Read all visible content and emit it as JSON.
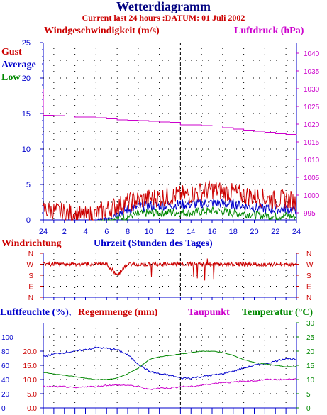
{
  "header": {
    "title": "Wetterdiagramm",
    "subtitle": "Current last 24 hours :DATUM: 01 Juli 2002"
  },
  "colors": {
    "wind": "#cc0000",
    "average": "#0000cc",
    "low": "#008800",
    "pressure": "#cc00cc",
    "humidity": "#0000cc",
    "rain": "#cc0000",
    "dewpoint": "#cc00cc",
    "temperature": "#008800",
    "axis": "#0000cc",
    "grid": "#000000"
  },
  "chart_data": [
    {
      "type": "line",
      "panel": "wind_pressure",
      "left_title": "Windgeschwindigkeit (m/s)",
      "right_title": "Luftdruck (hPa)",
      "legend": [
        "Gust",
        "Average",
        "Low"
      ],
      "x_ticks": [
        "24",
        "2",
        "4",
        "6",
        "8",
        "10",
        "12",
        "14",
        "16",
        "18",
        "20",
        "22",
        "24"
      ],
      "y_left_ticks": [
        "0",
        "5",
        "10",
        "15",
        "20",
        "25"
      ],
      "y_left_range": [
        0,
        25
      ],
      "y_right_ticks": [
        "995",
        "1000",
        "1005",
        "1010",
        "1015",
        "1020",
        "1025",
        "1030",
        "1035",
        "1040"
      ],
      "y_right_range": [
        993,
        1043
      ],
      "grid": true,
      "current_time_marker_hour": 13,
      "x": [
        0,
        1,
        2,
        3,
        4,
        5,
        6,
        7,
        8,
        9,
        10,
        11,
        12,
        13,
        14,
        15,
        16,
        17,
        18,
        19,
        20,
        21,
        22,
        23,
        24
      ],
      "series": [
        {
          "name": "Gust",
          "axis": "left",
          "values": [
            1.5,
            1.2,
            1.0,
            0.8,
            0.5,
            0.8,
            1.5,
            2.0,
            2.5,
            2.8,
            3.0,
            3.2,
            3.3,
            3.5,
            3.6,
            4.0,
            4.3,
            4.0,
            3.8,
            3.5,
            3.3,
            3.0,
            2.8,
            3.0,
            2.5
          ]
        },
        {
          "name": "Average",
          "axis": "left",
          "values": [
            0,
            0,
            0,
            0,
            0,
            0,
            0.3,
            1.0,
            1.5,
            1.8,
            2.0,
            2.0,
            2.1,
            2.2,
            2.2,
            2.3,
            2.4,
            2.3,
            2.2,
            2.0,
            1.8,
            1.6,
            1.5,
            1.6,
            1.4
          ]
        },
        {
          "name": "Low",
          "axis": "left",
          "values": [
            0,
            0,
            0,
            0,
            0,
            0,
            0,
            0.2,
            0.5,
            0.8,
            1.0,
            1.0,
            1.1,
            1.0,
            1.0,
            1.2,
            1.3,
            1.2,
            1.0,
            0.9,
            0.8,
            0.6,
            0.5,
            0.6,
            0.4
          ]
        },
        {
          "name": "Luftdruck",
          "axis": "right",
          "values": [
            1022.5,
            1022.4,
            1022.3,
            1022.0,
            1022.0,
            1021.8,
            1021.5,
            1021.2,
            1021.1,
            1021.0,
            1020.8,
            1020.6,
            1020.5,
            1019.8,
            1019.8,
            1019.6,
            1019.5,
            1019.0,
            1018.6,
            1018.3,
            1018.0,
            1017.7,
            1017.3,
            1017.1,
            1016.9
          ]
        }
      ]
    },
    {
      "type": "line",
      "panel": "wind_direction",
      "left_title": "Windrichtung",
      "x_title": "Uhrzeit (Stunden des Tages)",
      "y_ticks": [
        "N",
        "W",
        "S",
        "E",
        "N"
      ],
      "direction_order_top_to_bottom": [
        "N",
        "W",
        "S",
        "E",
        "N"
      ],
      "grid": true,
      "x": [
        0,
        1,
        2,
        3,
        4,
        5,
        6,
        7,
        8,
        9,
        10,
        11,
        12,
        13,
        14,
        15,
        16,
        17,
        18,
        19,
        20,
        21,
        22,
        23,
        24
      ],
      "series": [
        {
          "name": "Windrichtung",
          "values": [
            "W",
            "W",
            "W",
            "W",
            "W",
            "W",
            "W",
            "S",
            "W",
            "W",
            "W",
            "W",
            "W",
            "W",
            "W",
            "W",
            "W",
            "W",
            "W",
            "W",
            "W",
            "W",
            "W",
            "W",
            "W"
          ]
        }
      ]
    },
    {
      "type": "line",
      "panel": "humidity_rain_temp",
      "titles": [
        "Luftfeuchte (%),",
        "Regenmenge (mm)",
        "Taupunkt",
        "Temperatur (°C)"
      ],
      "y_left1_ticks": [
        "0",
        "20",
        "40",
        "60",
        "80",
        "100"
      ],
      "y_left1_range": [
        0,
        120
      ],
      "y_left2_ticks": [
        "0.0",
        "5.0",
        "10.0",
        "15.0",
        "20.0"
      ],
      "y_left2_range": [
        0,
        30
      ],
      "y_right_ticks": [
        "0",
        "5",
        "10",
        "15",
        "20",
        "25",
        "30"
      ],
      "y_right_range": [
        0,
        30
      ],
      "grid": true,
      "x": [
        0,
        1,
        2,
        3,
        4,
        5,
        6,
        7,
        8,
        9,
        10,
        11,
        12,
        13,
        14,
        15,
        16,
        17,
        18,
        19,
        20,
        21,
        22,
        23,
        24
      ],
      "series": [
        {
          "name": "Luftfeuchte (%)",
          "axis": "left1",
          "values": [
            72,
            76,
            78,
            80,
            82,
            85,
            84,
            82,
            75,
            62,
            52,
            48,
            46,
            42,
            42,
            44,
            46,
            48,
            52,
            56,
            60,
            62,
            66,
            70,
            68
          ]
        },
        {
          "name": "Temperatur (°C)",
          "axis": "right",
          "values": [
            12.5,
            12,
            11.5,
            11,
            10.5,
            10,
            10,
            10.5,
            12,
            14,
            17,
            18,
            18.5,
            19,
            19.5,
            20,
            20,
            19.5,
            18.5,
            17,
            16,
            15.5,
            15,
            14.5,
            14.5
          ]
        },
        {
          "name": "Taupunkt",
          "axis": "right",
          "values": [
            7.5,
            7.5,
            7.5,
            7,
            7.5,
            7.5,
            8,
            8,
            8,
            7.5,
            6.5,
            7,
            7,
            7.5,
            7.5,
            8,
            8.5,
            9,
            9,
            9.5,
            9.5,
            10,
            10,
            10,
            10.5
          ]
        }
      ]
    }
  ]
}
